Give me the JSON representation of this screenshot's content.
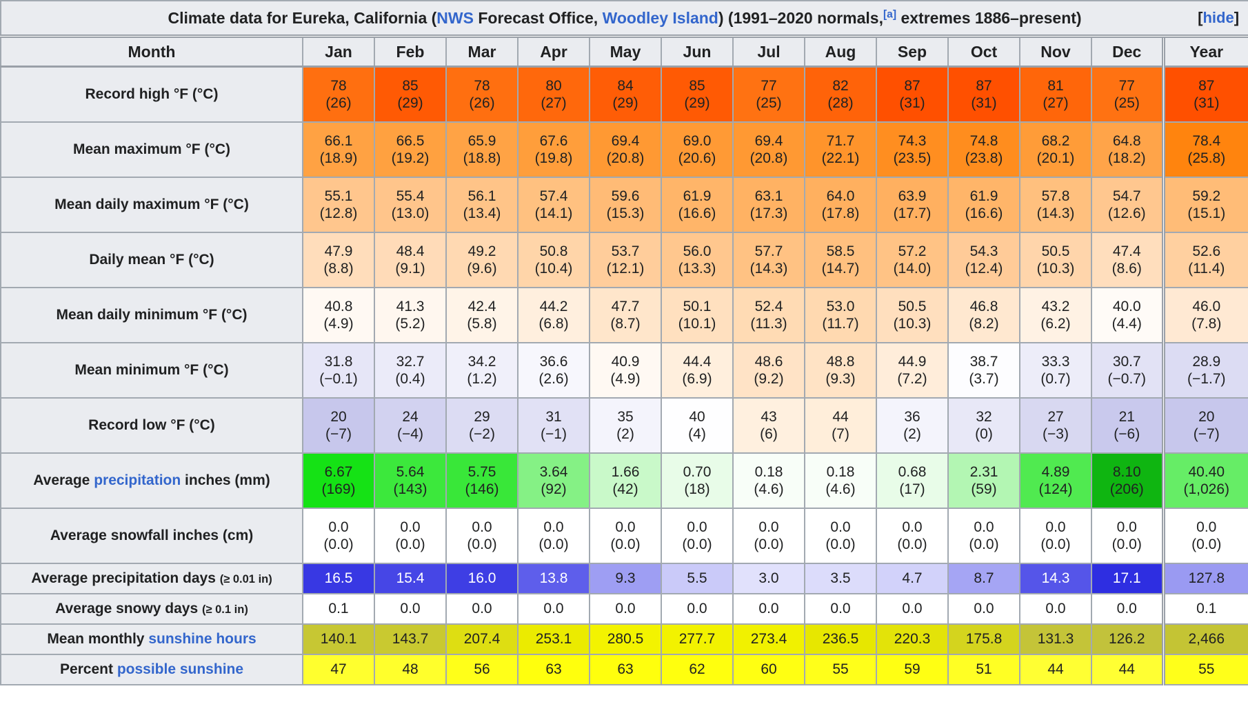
{
  "colors": {
    "link": "#3366cc",
    "header_bg": "#eaecf0"
  },
  "title": {
    "segments": [
      {
        "t": "Climate data for Eureka, California (",
        "name": "title-text-1"
      },
      {
        "t": "NWS",
        "link": true,
        "name": "nws-link"
      },
      {
        "t": " Forecast Office, ",
        "name": "title-text-2"
      },
      {
        "t": "Woodley Island",
        "link": true,
        "name": "woodley-island-link"
      },
      {
        "t": ") (1991–2020 normals,",
        "name": "title-text-3"
      },
      {
        "t": "[a]",
        "link": true,
        "sup": true,
        "name": "footnote-a-ref"
      },
      {
        "t": " extremes 1886–present)",
        "name": "title-text-4"
      }
    ],
    "hide": {
      "pre": "[",
      "label": "hide",
      "post": "]"
    }
  },
  "header": {
    "columns": [
      "Month",
      "Jan",
      "Feb",
      "Mar",
      "Apr",
      "May",
      "Jun",
      "Jul",
      "Aug",
      "Sep",
      "Oct",
      "Nov",
      "Dec",
      "Year"
    ]
  },
  "month_keys": [
    "jan",
    "feb",
    "mar",
    "apr",
    "may",
    "jun",
    "jul",
    "aug",
    "sep",
    "oct",
    "nov",
    "dec",
    "year"
  ],
  "rows": [
    {
      "key": "record-high",
      "two_line": true,
      "label": [
        {
          "t": "Record high °F (°C)"
        }
      ],
      "cells": [
        {
          "v": "78",
          "p": "(26)",
          "bg": "#ff6f10"
        },
        {
          "v": "85",
          "p": "(29)",
          "bg": "#ff5a04"
        },
        {
          "v": "78",
          "p": "(26)",
          "bg": "#ff6f10"
        },
        {
          "v": "80",
          "p": "(27)",
          "bg": "#ff680c"
        },
        {
          "v": "84",
          "p": "(29)",
          "bg": "#ff5d06"
        },
        {
          "v": "85",
          "p": "(29)",
          "bg": "#ff5a04"
        },
        {
          "v": "77",
          "p": "(25)",
          "bg": "#ff7212"
        },
        {
          "v": "82",
          "p": "(28)",
          "bg": "#ff6309"
        },
        {
          "v": "87",
          "p": "(31)",
          "bg": "#ff5000"
        },
        {
          "v": "87",
          "p": "(31)",
          "bg": "#ff5000"
        },
        {
          "v": "81",
          "p": "(27)",
          "bg": "#ff660a"
        },
        {
          "v": "77",
          "p": "(25)",
          "bg": "#ff7212"
        },
        {
          "v": "87",
          "p": "(31)",
          "bg": "#ff5000"
        }
      ]
    },
    {
      "key": "mean-maximum",
      "two_line": true,
      "label": [
        {
          "t": "Mean maximum °F (°C)"
        }
      ],
      "cells": [
        {
          "v": "66.1",
          "p": "(18.9)",
          "bg": "#ffa243"
        },
        {
          "v": "66.5",
          "p": "(19.2)",
          "bg": "#ffa140"
        },
        {
          "v": "65.9",
          "p": "(18.8)",
          "bg": "#ffa345"
        },
        {
          "v": "67.6",
          "p": "(19.8)",
          "bg": "#ff9e3b"
        },
        {
          "v": "69.4",
          "p": "(20.8)",
          "bg": "#ff9933"
        },
        {
          "v": "69.0",
          "p": "(20.6)",
          "bg": "#ff9a35"
        },
        {
          "v": "69.4",
          "p": "(20.8)",
          "bg": "#ff9933"
        },
        {
          "v": "71.7",
          "p": "(22.1)",
          "bg": "#ff942b"
        },
        {
          "v": "74.3",
          "p": "(23.5)",
          "bg": "#ff8e20"
        },
        {
          "v": "74.8",
          "p": "(23.8)",
          "bg": "#ff8d1e"
        },
        {
          "v": "68.2",
          "p": "(20.1)",
          "bg": "#ff9c38"
        },
        {
          "v": "64.8",
          "p": "(18.2)",
          "bg": "#ffa449"
        },
        {
          "v": "78.4",
          "p": "(25.8)",
          "bg": "#ff840e"
        }
      ]
    },
    {
      "key": "mean-daily-maximum",
      "two_line": true,
      "label": [
        {
          "t": "Mean daily maximum °F (°C)"
        }
      ],
      "cells": [
        {
          "v": "55.1",
          "p": "(12.8)",
          "bg": "#ffc68d"
        },
        {
          "v": "55.4",
          "p": "(13.0)",
          "bg": "#ffc58b"
        },
        {
          "v": "56.1",
          "p": "(13.4)",
          "bg": "#ffc488"
        },
        {
          "v": "57.4",
          "p": "(14.1)",
          "bg": "#ffc180"
        },
        {
          "v": "59.6",
          "p": "(15.3)",
          "bg": "#ffbb76"
        },
        {
          "v": "61.9",
          "p": "(16.6)",
          "bg": "#ffb569"
        },
        {
          "v": "63.1",
          "p": "(17.3)",
          "bg": "#ffb263"
        },
        {
          "v": "64.0",
          "p": "(17.8)",
          "bg": "#ffb05f"
        },
        {
          "v": "63.9",
          "p": "(17.7)",
          "bg": "#ffb060"
        },
        {
          "v": "61.9",
          "p": "(16.6)",
          "bg": "#ffb569"
        },
        {
          "v": "57.8",
          "p": "(14.3)",
          "bg": "#ffc07e"
        },
        {
          "v": "54.7",
          "p": "(12.6)",
          "bg": "#ffc78f"
        },
        {
          "v": "59.2",
          "p": "(15.1)",
          "bg": "#ffbc77"
        }
      ]
    },
    {
      "key": "daily-mean",
      "two_line": true,
      "label": [
        {
          "t": "Daily mean °F (°C)"
        }
      ],
      "cells": [
        {
          "v": "47.9",
          "p": "(8.8)",
          "bg": "#ffddbb"
        },
        {
          "v": "48.4",
          "p": "(9.1)",
          "bg": "#ffdbb8"
        },
        {
          "v": "49.2",
          "p": "(9.6)",
          "bg": "#ffd9b2"
        },
        {
          "v": "50.8",
          "p": "(10.4)",
          "bg": "#ffd5a9"
        },
        {
          "v": "53.7",
          "p": "(12.1)",
          "bg": "#ffcd9b"
        },
        {
          "v": "56.0",
          "p": "(13.3)",
          "bg": "#ffc78e"
        },
        {
          "v": "57.7",
          "p": "(14.3)",
          "bg": "#ffc283"
        },
        {
          "v": "58.5",
          "p": "(14.7)",
          "bg": "#ffc07f"
        },
        {
          "v": "57.2",
          "p": "(14.0)",
          "bg": "#ffc385"
        },
        {
          "v": "54.3",
          "p": "(12.4)",
          "bg": "#ffcb98"
        },
        {
          "v": "50.5",
          "p": "(10.3)",
          "bg": "#ffd5ab"
        },
        {
          "v": "47.4",
          "p": "(8.6)",
          "bg": "#ffdebd"
        },
        {
          "v": "52.6",
          "p": "(11.4)",
          "bg": "#ffd0a0"
        }
      ]
    },
    {
      "key": "mean-daily-minimum",
      "two_line": true,
      "label": [
        {
          "t": "Mean daily minimum °F (°C)"
        }
      ],
      "cells": [
        {
          "v": "40.8",
          "p": "(4.9)",
          "bg": "#fff9f3"
        },
        {
          "v": "41.3",
          "p": "(5.2)",
          "bg": "#fff7ef"
        },
        {
          "v": "42.4",
          "p": "(5.8)",
          "bg": "#fff4e8"
        },
        {
          "v": "44.2",
          "p": "(6.8)",
          "bg": "#ffefde"
        },
        {
          "v": "47.7",
          "p": "(8.7)",
          "bg": "#ffe6cb"
        },
        {
          "v": "50.1",
          "p": "(10.1)",
          "bg": "#ffe0bf"
        },
        {
          "v": "52.4",
          "p": "(11.3)",
          "bg": "#ffdbb4"
        },
        {
          "v": "53.0",
          "p": "(11.7)",
          "bg": "#ffd9b0"
        },
        {
          "v": "50.5",
          "p": "(10.3)",
          "bg": "#ffdfbe"
        },
        {
          "v": "46.8",
          "p": "(8.2)",
          "bg": "#ffe8d0"
        },
        {
          "v": "43.2",
          "p": "(6.2)",
          "bg": "#fff2e4"
        },
        {
          "v": "40.0",
          "p": "(4.4)",
          "bg": "#fffbf7"
        },
        {
          "v": "46.0",
          "p": "(7.8)",
          "bg": "#ffe9d3"
        }
      ]
    },
    {
      "key": "mean-minimum",
      "two_line": true,
      "label": [
        {
          "t": "Mean minimum °F (°C)"
        }
      ],
      "cells": [
        {
          "v": "31.8",
          "p": "(−0.1)",
          "bg": "#e6e6f7"
        },
        {
          "v": "32.7",
          "p": "(0.4)",
          "bg": "#ebebf9"
        },
        {
          "v": "34.2",
          "p": "(1.2)",
          "bg": "#f0f0fa"
        },
        {
          "v": "36.6",
          "p": "(2.6)",
          "bg": "#f7f7fd"
        },
        {
          "v": "40.9",
          "p": "(4.9)",
          "bg": "#fff9f3"
        },
        {
          "v": "44.4",
          "p": "(6.9)",
          "bg": "#ffefdd"
        },
        {
          "v": "48.6",
          "p": "(9.2)",
          "bg": "#ffe3c6"
        },
        {
          "v": "48.8",
          "p": "(9.3)",
          "bg": "#ffe3c5"
        },
        {
          "v": "44.9",
          "p": "(7.2)",
          "bg": "#ffedda"
        },
        {
          "v": "38.7",
          "p": "(3.7)",
          "bg": "#fdfdff"
        },
        {
          "v": "33.3",
          "p": "(0.7)",
          "bg": "#ededf9"
        },
        {
          "v": "30.7",
          "p": "(−0.7)",
          "bg": "#e2e2f5"
        },
        {
          "v": "28.9",
          "p": "(−1.7)",
          "bg": "#dcdcf3"
        }
      ]
    },
    {
      "key": "record-low",
      "two_line": true,
      "label": [
        {
          "t": "Record low °F (°C)"
        }
      ],
      "cells": [
        {
          "v": "20",
          "p": "(−7)",
          "bg": "#c7c7ec"
        },
        {
          "v": "24",
          "p": "(−4)",
          "bg": "#d2d2f0"
        },
        {
          "v": "29",
          "p": "(−2)",
          "bg": "#dcdcf3"
        },
        {
          "v": "31",
          "p": "(−1)",
          "bg": "#e1e1f5"
        },
        {
          "v": "35",
          "p": "(2)",
          "bg": "#f4f4fc"
        },
        {
          "v": "40",
          "p": "(4)",
          "bg": "#fefeff"
        },
        {
          "v": "43",
          "p": "(6)",
          "bg": "#fff0df"
        },
        {
          "v": "44",
          "p": "(7)",
          "bg": "#ffeeda"
        },
        {
          "v": "36",
          "p": "(2)",
          "bg": "#f4f4fc"
        },
        {
          "v": "32",
          "p": "(0)",
          "bg": "#e8e8f7"
        },
        {
          "v": "27",
          "p": "(−3)",
          "bg": "#d8d8f1"
        },
        {
          "v": "21",
          "p": "(−6)",
          "bg": "#c9c9ed"
        },
        {
          "v": "20",
          "p": "(−7)",
          "bg": "#c7c7ec"
        }
      ]
    },
    {
      "key": "average-precipitation",
      "two_line": true,
      "label": [
        {
          "t": "Average "
        },
        {
          "t": "precipitation",
          "link": true,
          "name": "precipitation-link"
        },
        {
          "t": " inches (mm)"
        }
      ],
      "cells": [
        {
          "v": "6.67",
          "p": "(169)",
          "bg": "#15e215"
        },
        {
          "v": "5.64",
          "p": "(143)",
          "bg": "#3ce83c"
        },
        {
          "v": "5.75",
          "p": "(146)",
          "bg": "#39e739"
        },
        {
          "v": "3.64",
          "p": "(92)",
          "bg": "#85f185"
        },
        {
          "v": "1.66",
          "p": "(42)",
          "bg": "#c9f9c9"
        },
        {
          "v": "0.70",
          "p": "(18)",
          "bg": "#e8fce8"
        },
        {
          "v": "0.18",
          "p": "(4.6)",
          "bg": "#f8fef8"
        },
        {
          "v": "0.18",
          "p": "(4.6)",
          "bg": "#f8fef8"
        },
        {
          "v": "0.68",
          "p": "(17)",
          "bg": "#e8fce8"
        },
        {
          "v": "2.31",
          "p": "(59)",
          "bg": "#b3f6b3"
        },
        {
          "v": "4.89",
          "p": "(124)",
          "bg": "#50ea50"
        },
        {
          "v": "8.10",
          "p": "(206)",
          "bg": "#0fb511"
        },
        {
          "v": "40.40",
          "p": "(1,026)",
          "bg": "#66ed66"
        }
      ]
    },
    {
      "key": "average-snowfall",
      "two_line": true,
      "label": [
        {
          "t": "Average snowfall inches (cm)"
        }
      ],
      "cells": [
        {
          "v": "0.0",
          "p": "(0.0)",
          "bg": "#ffffff"
        },
        {
          "v": "0.0",
          "p": "(0.0)",
          "bg": "#ffffff"
        },
        {
          "v": "0.0",
          "p": "(0.0)",
          "bg": "#ffffff"
        },
        {
          "v": "0.0",
          "p": "(0.0)",
          "bg": "#ffffff"
        },
        {
          "v": "0.0",
          "p": "(0.0)",
          "bg": "#ffffff"
        },
        {
          "v": "0.0",
          "p": "(0.0)",
          "bg": "#ffffff"
        },
        {
          "v": "0.0",
          "p": "(0.0)",
          "bg": "#ffffff"
        },
        {
          "v": "0.0",
          "p": "(0.0)",
          "bg": "#ffffff"
        },
        {
          "v": "0.0",
          "p": "(0.0)",
          "bg": "#ffffff"
        },
        {
          "v": "0.0",
          "p": "(0.0)",
          "bg": "#ffffff"
        },
        {
          "v": "0.0",
          "p": "(0.0)",
          "bg": "#ffffff"
        },
        {
          "v": "0.0",
          "p": "(0.0)",
          "bg": "#ffffff"
        },
        {
          "v": "0.0",
          "p": "(0.0)",
          "bg": "#ffffff"
        }
      ]
    },
    {
      "key": "average-precipitation-days",
      "two_line": false,
      "label": [
        {
          "t": "Average precipitation days "
        },
        {
          "t": "(≥ 0.01 in)",
          "small": true
        }
      ],
      "cells": [
        {
          "v": "16.5",
          "bg": "#3838e3",
          "fg": "#ffffff"
        },
        {
          "v": "15.4",
          "bg": "#4646e6",
          "fg": "#ffffff"
        },
        {
          "v": "16.0",
          "bg": "#3e3ee4",
          "fg": "#ffffff"
        },
        {
          "v": "13.8",
          "bg": "#5e5eeb",
          "fg": "#ffffff"
        },
        {
          "v": "9.3",
          "bg": "#9e9ef3"
        },
        {
          "v": "5.5",
          "bg": "#cacaf9"
        },
        {
          "v": "3.0",
          "bg": "#e1e1fc"
        },
        {
          "v": "3.5",
          "bg": "#dcdcfb"
        },
        {
          "v": "4.7",
          "bg": "#d2d2fa"
        },
        {
          "v": "8.7",
          "bg": "#a5a5f4"
        },
        {
          "v": "14.3",
          "bg": "#5555e9",
          "fg": "#ffffff"
        },
        {
          "v": "17.1",
          "bg": "#2e2ee1",
          "fg": "#ffffff"
        },
        {
          "v": "127.8",
          "bg": "#9a9af2"
        }
      ]
    },
    {
      "key": "average-snowy-days",
      "two_line": false,
      "label": [
        {
          "t": "Average snowy days "
        },
        {
          "t": "(≥ 0.1 in)",
          "small": true
        }
      ],
      "cells": [
        {
          "v": "0.1",
          "bg": "#ffffff"
        },
        {
          "v": "0.0",
          "bg": "#ffffff"
        },
        {
          "v": "0.0",
          "bg": "#ffffff"
        },
        {
          "v": "0.0",
          "bg": "#ffffff"
        },
        {
          "v": "0.0",
          "bg": "#ffffff"
        },
        {
          "v": "0.0",
          "bg": "#ffffff"
        },
        {
          "v": "0.0",
          "bg": "#ffffff"
        },
        {
          "v": "0.0",
          "bg": "#ffffff"
        },
        {
          "v": "0.0",
          "bg": "#ffffff"
        },
        {
          "v": "0.0",
          "bg": "#ffffff"
        },
        {
          "v": "0.0",
          "bg": "#ffffff"
        },
        {
          "v": "0.0",
          "bg": "#ffffff"
        },
        {
          "v": "0.1",
          "bg": "#ffffff"
        }
      ]
    },
    {
      "key": "mean-monthly-sunshine-hours",
      "two_line": false,
      "label": [
        {
          "t": "Mean monthly "
        },
        {
          "t": "sunshine hours",
          "link": true,
          "name": "sunshine-hours-link"
        }
      ],
      "cells": [
        {
          "v": "140.1",
          "bg": "#c7c733"
        },
        {
          "v": "143.7",
          "bg": "#c9c930"
        },
        {
          "v": "207.4",
          "bg": "#dede12"
        },
        {
          "v": "253.1",
          "bg": "#ebeb00"
        },
        {
          "v": "280.5",
          "bg": "#f3f300"
        },
        {
          "v": "277.7",
          "bg": "#f2f200"
        },
        {
          "v": "273.4",
          "bg": "#f1f100"
        },
        {
          "v": "236.5",
          "bg": "#e7e700"
        },
        {
          "v": "220.3",
          "bg": "#e3e309"
        },
        {
          "v": "175.8",
          "bg": "#d4d41e"
        },
        {
          "v": "131.3",
          "bg": "#c4c438"
        },
        {
          "v": "126.2",
          "bg": "#c2c23b"
        },
        {
          "v": "2,466",
          "bg": "#c4c434"
        }
      ]
    },
    {
      "key": "percent-possible-sunshine",
      "two_line": false,
      "label": [
        {
          "t": "Percent "
        },
        {
          "t": "possible sunshine",
          "link": true,
          "name": "possible-sunshine-link"
        }
      ],
      "cells": [
        {
          "v": "47",
          "bg": "#ffff2e"
        },
        {
          "v": "48",
          "bg": "#ffff2c"
        },
        {
          "v": "56",
          "bg": "#ffff19"
        },
        {
          "v": "63",
          "bg": "#ffff0d"
        },
        {
          "v": "63",
          "bg": "#ffff0d"
        },
        {
          "v": "62",
          "bg": "#ffff0e"
        },
        {
          "v": "60",
          "bg": "#ffff12"
        },
        {
          "v": "55",
          "bg": "#ffff1a"
        },
        {
          "v": "59",
          "bg": "#ffff13"
        },
        {
          "v": "51",
          "bg": "#ffff24"
        },
        {
          "v": "44",
          "bg": "#ffff33"
        },
        {
          "v": "44",
          "bg": "#ffff33"
        },
        {
          "v": "55",
          "bg": "#ffff1a"
        }
      ]
    }
  ]
}
